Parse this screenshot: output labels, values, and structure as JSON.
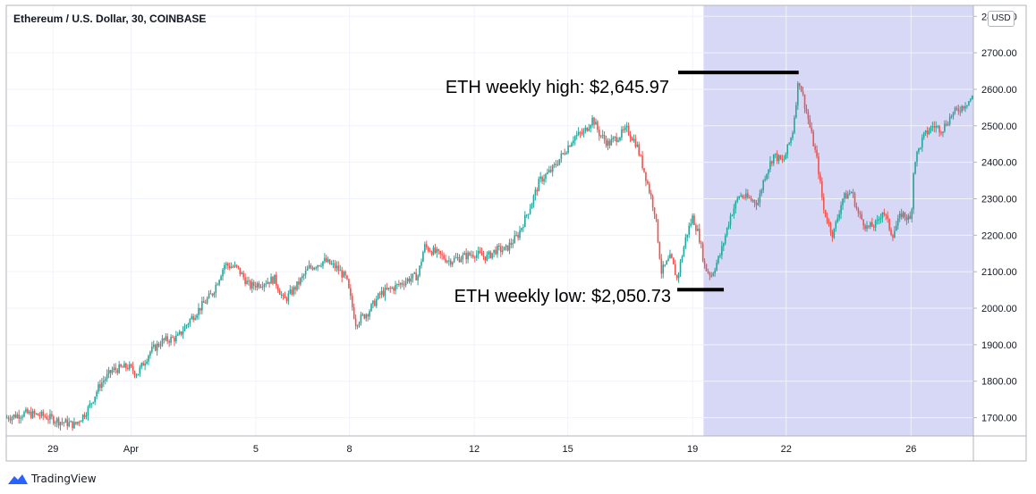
{
  "header": {
    "title": "Ethereum / U.S. Dollar, 30, COINBASE",
    "currency": "USD"
  },
  "footer": {
    "brand": "TradingView"
  },
  "colors": {
    "up": "#26a69a",
    "down": "#ef5350",
    "highlight": "#d6d8f6",
    "grid": "#f0f3fa"
  },
  "chart_data": {
    "type": "candlestick",
    "y_axis": {
      "range": [
        1650,
        2830
      ],
      "ticks": [
        "2800.00",
        "2700.00",
        "2600.00",
        "2500.00",
        "2400.00",
        "2300.00",
        "2200.00",
        "2100.00",
        "2000.00",
        "1900.00",
        "1800.00",
        "1700.00"
      ]
    },
    "x_axis": {
      "ticks": [
        {
          "label": "29",
          "day": 1.5
        },
        {
          "label": "Apr",
          "day": 4
        },
        {
          "label": "5",
          "day": 8
        },
        {
          "label": "8",
          "day": 11
        },
        {
          "label": "12",
          "day": 15
        },
        {
          "label": "15",
          "day": 18
        },
        {
          "label": "19",
          "day": 22
        },
        {
          "label": "22",
          "day": 25
        },
        {
          "label": "26",
          "day": 29
        }
      ],
      "range": [
        0,
        31
      ]
    },
    "highlight_range": {
      "from_day": 22.35,
      "to_day": 31
    },
    "close_path": [
      [
        0,
        1700
      ],
      [
        0.6,
        1712
      ],
      [
        1.2,
        1705
      ],
      [
        1.7,
        1690
      ],
      [
        2.2,
        1680
      ],
      [
        2.6,
        1720
      ],
      [
        3.0,
        1790
      ],
      [
        3.4,
        1830
      ],
      [
        3.9,
        1840
      ],
      [
        4.2,
        1820
      ],
      [
        4.6,
        1880
      ],
      [
        5.0,
        1910
      ],
      [
        5.5,
        1920
      ],
      [
        5.9,
        1970
      ],
      [
        6.3,
        2010
      ],
      [
        6.6,
        2040
      ],
      [
        7.0,
        2120
      ],
      [
        7.4,
        2110
      ],
      [
        7.8,
        2060
      ],
      [
        8.2,
        2070
      ],
      [
        8.6,
        2080
      ],
      [
        8.9,
        2020
      ],
      [
        9.3,
        2060
      ],
      [
        9.7,
        2110
      ],
      [
        10.2,
        2130
      ],
      [
        10.6,
        2110
      ],
      [
        10.9,
        2080
      ],
      [
        11.2,
        1960
      ],
      [
        11.6,
        1990
      ],
      [
        12.0,
        2040
      ],
      [
        12.5,
        2060
      ],
      [
        12.9,
        2080
      ],
      [
        13.2,
        2090
      ],
      [
        13.4,
        2170
      ],
      [
        13.8,
        2150
      ],
      [
        14.2,
        2130
      ],
      [
        14.6,
        2140
      ],
      [
        15.0,
        2150
      ],
      [
        15.4,
        2140
      ],
      [
        15.7,
        2160
      ],
      [
        16.0,
        2160
      ],
      [
        16.4,
        2200
      ],
      [
        16.8,
        2280
      ],
      [
        17.1,
        2350
      ],
      [
        17.5,
        2380
      ],
      [
        17.9,
        2430
      ],
      [
        18.2,
        2470
      ],
      [
        18.5,
        2480
      ],
      [
        18.8,
        2520
      ],
      [
        19.0,
        2480
      ],
      [
        19.3,
        2450
      ],
      [
        19.6,
        2470
      ],
      [
        19.9,
        2490
      ],
      [
        20.2,
        2450
      ],
      [
        20.5,
        2360
      ],
      [
        20.8,
        2260
      ],
      [
        21.0,
        2100
      ],
      [
        21.3,
        2140
      ],
      [
        21.5,
        2080
      ],
      [
        21.8,
        2200
      ],
      [
        22.0,
        2250
      ],
      [
        22.2,
        2200
      ],
      [
        22.4,
        2110
      ],
      [
        22.6,
        2090
      ],
      [
        22.9,
        2150
      ],
      [
        23.2,
        2250
      ],
      [
        23.5,
        2310
      ],
      [
        23.8,
        2300
      ],
      [
        24.1,
        2290
      ],
      [
        24.3,
        2360
      ],
      [
        24.6,
        2420
      ],
      [
        24.9,
        2400
      ],
      [
        25.2,
        2480
      ],
      [
        25.4,
        2630
      ],
      [
        25.7,
        2520
      ],
      [
        26.0,
        2400
      ],
      [
        26.2,
        2270
      ],
      [
        26.5,
        2200
      ],
      [
        26.8,
        2300
      ],
      [
        27.1,
        2320
      ],
      [
        27.3,
        2260
      ],
      [
        27.6,
        2220
      ],
      [
        27.9,
        2230
      ],
      [
        28.1,
        2270
      ],
      [
        28.4,
        2200
      ],
      [
        28.7,
        2260
      ],
      [
        29.0,
        2240
      ],
      [
        29.1,
        2400
      ],
      [
        29.4,
        2470
      ],
      [
        29.7,
        2500
      ],
      [
        30.0,
        2490
      ],
      [
        30.3,
        2530
      ],
      [
        30.6,
        2550
      ],
      [
        31,
        2580
      ]
    ],
    "annotations": [
      {
        "text": "ETH weekly high: $2,645.97",
        "value": 2645.97,
        "from_day": 21.0,
        "to_day": 25.4
      },
      {
        "text": "ETH weekly low: $2,050.73",
        "value": 2050.73,
        "from_day": 21.0,
        "to_day": 23.0
      }
    ]
  }
}
